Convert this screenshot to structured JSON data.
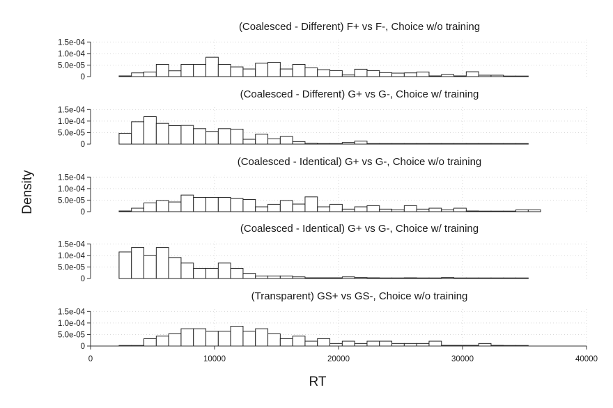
{
  "chart_data": {
    "type": "bar",
    "chart_kind": "histogram",
    "xlabel": "RT",
    "ylabel": "Density",
    "xlim": [
      0,
      40000
    ],
    "x_ticks": [
      "0",
      "10000",
      "20000",
      "30000",
      "40000"
    ],
    "x_tick_values": [
      0,
      10000,
      20000,
      30000,
      40000
    ],
    "ylim": [
      0,
      0.00016
    ],
    "y_ticks": [
      "0",
      "5.0e-05",
      "1.0e-04",
      "1.5e-04"
    ],
    "y_tick_values": [
      0,
      5e-05,
      0.0001,
      0.00015
    ],
    "bin_width": 1000,
    "bin_start": 2300,
    "grid": true,
    "panels": [
      {
        "title": "(Coalesced - Different) F+ vs F-, Choice w/o training",
        "values": [
          3e-06,
          1.6e-05,
          2e-05,
          5.3e-05,
          2.5e-05,
          5.3e-05,
          5.3e-05,
          8.4e-05,
          5.3e-05,
          4.2e-05,
          3.3e-05,
          5.8e-05,
          6.2e-05,
          3.3e-05,
          5.3e-05,
          3.8e-05,
          3e-05,
          2.6e-05,
          7e-06,
          3.2e-05,
          2.6e-05,
          1.7e-05,
          1.5e-05,
          1.6e-05,
          2e-05,
          3e-06,
          9e-06,
          3e-06,
          2.1e-05,
          6e-06,
          6e-06,
          2e-06,
          1e-06
        ]
      },
      {
        "title": "(Coalesced - Different) G+ vs G-, Choice w/ training",
        "values": [
          4.7e-05,
          9.7e-05,
          0.000119,
          9e-05,
          8e-05,
          8.1e-05,
          6.7e-05,
          5.5e-05,
          6.7e-05,
          6.5e-05,
          2.1e-05,
          4.3e-05,
          2.3e-05,
          3.3e-05,
          1.1e-05,
          4e-06,
          2e-06,
          1e-06,
          7e-06,
          1.3e-05,
          0,
          1e-06,
          0,
          0,
          1e-06,
          0,
          0,
          0,
          1e-06,
          1e-06,
          0,
          0,
          0
        ]
      },
      {
        "title": "(Coalesced - Identical) G+ vs G-, Choice w/o training",
        "values": [
          3e-06,
          1.5e-05,
          3.8e-05,
          4.8e-05,
          4.2e-05,
          7.2e-05,
          6.2e-05,
          6.2e-05,
          6.2e-05,
          5.7e-05,
          5.3e-05,
          2.1e-05,
          3.2e-05,
          4.8e-05,
          3.3e-05,
          6.4e-05,
          2.1e-05,
          3.2e-05,
          1.1e-05,
          2.1e-05,
          2.6e-05,
          1.1e-05,
          8e-06,
          2.6e-05,
          1.1e-05,
          1.5e-05,
          8e-06,
          1.5e-05,
          3e-06,
          1e-06,
          0,
          0,
          8e-06,
          8e-06
        ]
      },
      {
        "title": "(Coalesced - Identical) G+ vs G-, Choice w/ training",
        "values": [
          0.000115,
          0.000134,
          0.000101,
          0.000134,
          9.1e-05,
          6.7e-05,
          4.4e-05,
          4.4e-05,
          6.7e-05,
          4.4e-05,
          2.2e-05,
          1.1e-05,
          1.1e-05,
          1.1e-05,
          7e-06,
          3e-06,
          3e-06,
          3e-06,
          7e-06,
          4e-06,
          3e-06,
          1e-06,
          0,
          3e-06,
          1e-06,
          1e-06,
          4e-06,
          0,
          0,
          1e-06,
          0,
          0,
          0
        ]
      },
      {
        "title": "(Transparent) GS+ vs GS-, Choice w/o training",
        "values": [
          0,
          0,
          3.2e-05,
          4.3e-05,
          5.3e-05,
          7.5e-05,
          7.5e-05,
          6.4e-05,
          6.4e-05,
          8.6e-05,
          6.4e-05,
          7.5e-05,
          5.3e-05,
          3.2e-05,
          4.3e-05,
          2.1e-05,
          3.2e-05,
          1.1e-05,
          2.1e-05,
          1.1e-05,
          2.1e-05,
          2.1e-05,
          1.1e-05,
          1.1e-05,
          1.1e-05,
          2.1e-05,
          3e-06,
          3e-06,
          3e-06,
          1.1e-05,
          3e-06,
          0,
          0
        ]
      }
    ]
  }
}
